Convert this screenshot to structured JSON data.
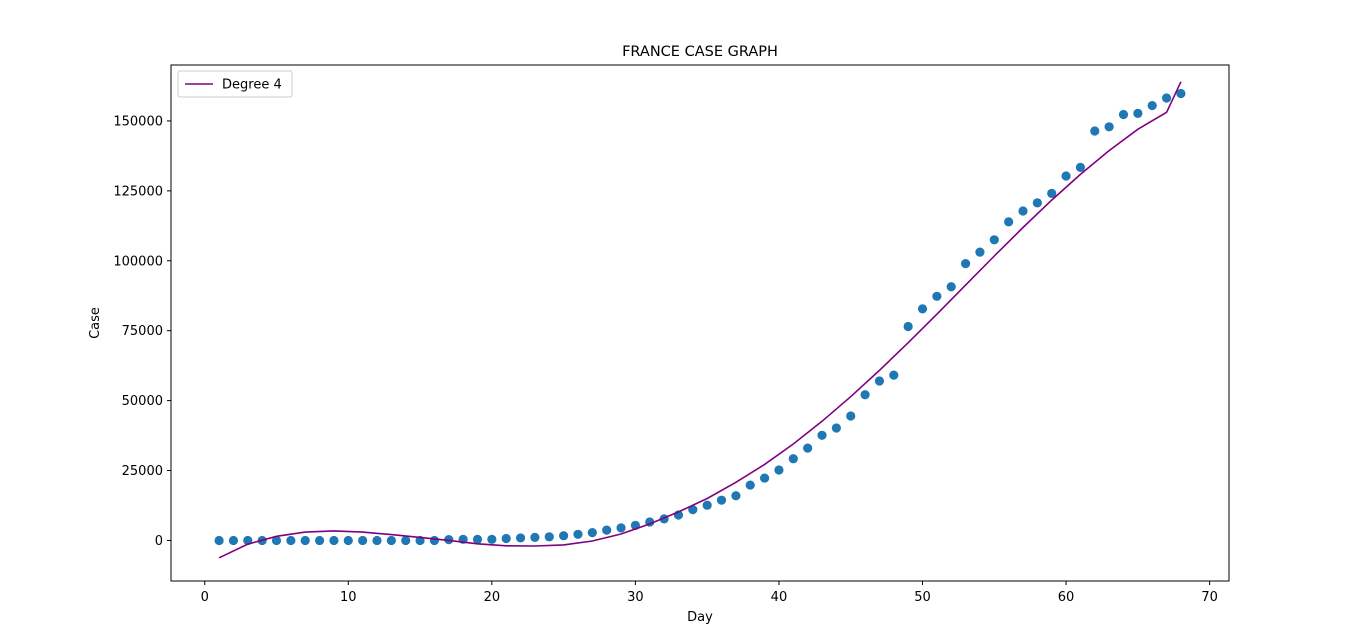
{
  "chart_data": {
    "type": "scatter",
    "title": "FRANCE CASE GRAPH",
    "xlabel": "Day",
    "ylabel": "Case",
    "xlim": [
      -2.35,
      71.35
    ],
    "ylim": [
      -14500,
      170000
    ],
    "x_ticks": [
      0,
      10,
      20,
      30,
      40,
      50,
      60,
      70
    ],
    "y_ticks": [
      0,
      25000,
      50000,
      75000,
      100000,
      125000,
      150000
    ],
    "grid": false,
    "legend": {
      "placement": "top-left",
      "entries": [
        {
          "label": "Degree 4",
          "color": "#800080"
        }
      ]
    },
    "points_color": "#1f77b4",
    "fit_color": "#800080",
    "series": [
      {
        "kind": "scatter",
        "x": [
          1,
          2,
          3,
          4,
          5,
          6,
          7,
          8,
          9,
          10,
          11,
          12,
          13,
          14,
          15,
          16,
          17,
          18,
          19,
          20,
          21,
          22,
          23,
          24,
          25,
          26,
          27,
          28,
          29,
          30,
          31,
          32,
          33,
          34,
          35,
          36,
          37,
          38,
          39,
          40,
          41,
          42,
          43,
          44,
          45,
          46,
          47,
          48,
          49,
          50,
          51,
          52,
          53,
          54,
          55,
          56,
          57,
          58,
          59,
          60,
          61,
          62,
          63,
          64,
          65,
          66,
          67,
          68
        ],
        "y": [
          0,
          0,
          0,
          0,
          0,
          0,
          0,
          0,
          0,
          0,
          0,
          0,
          0,
          0,
          0,
          0,
          300,
          400,
          400,
          400,
          700,
          900,
          1100,
          1300,
          1700,
          2200,
          2800,
          3700,
          4500,
          5400,
          6600,
          7700,
          9100,
          11000,
          12600,
          14400,
          16000,
          19800,
          22300,
          25200,
          29200,
          33000,
          37600,
          40200,
          44500,
          52100,
          57000,
          59100,
          76500,
          82800,
          87300,
          90700,
          99000,
          103100,
          107500,
          113900,
          117800,
          120700,
          124100,
          130300,
          133400,
          146400,
          147900,
          152300,
          152700,
          155500,
          158200,
          159800
        ]
      },
      {
        "name": "Degree 4",
        "kind": "line",
        "x": [
          1,
          3,
          5,
          7,
          9,
          11,
          13,
          15,
          17,
          19,
          21,
          23,
          25,
          27,
          29,
          31,
          33,
          35,
          37,
          39,
          41,
          43,
          45,
          47,
          49,
          51,
          53,
          55,
          57,
          59,
          61,
          63,
          65,
          67,
          68
        ],
        "y": [
          -6200,
          -1300,
          1500,
          3000,
          3400,
          3000,
          2100,
          1100,
          0,
          -1200,
          -1900,
          -2000,
          -1600,
          -200,
          2300,
          5900,
          10200,
          15000,
          20800,
          27200,
          34500,
          42600,
          51400,
          60800,
          70700,
          80900,
          91300,
          101700,
          111900,
          121700,
          130900,
          139400,
          147000,
          153100,
          164000
        ]
      }
    ]
  }
}
